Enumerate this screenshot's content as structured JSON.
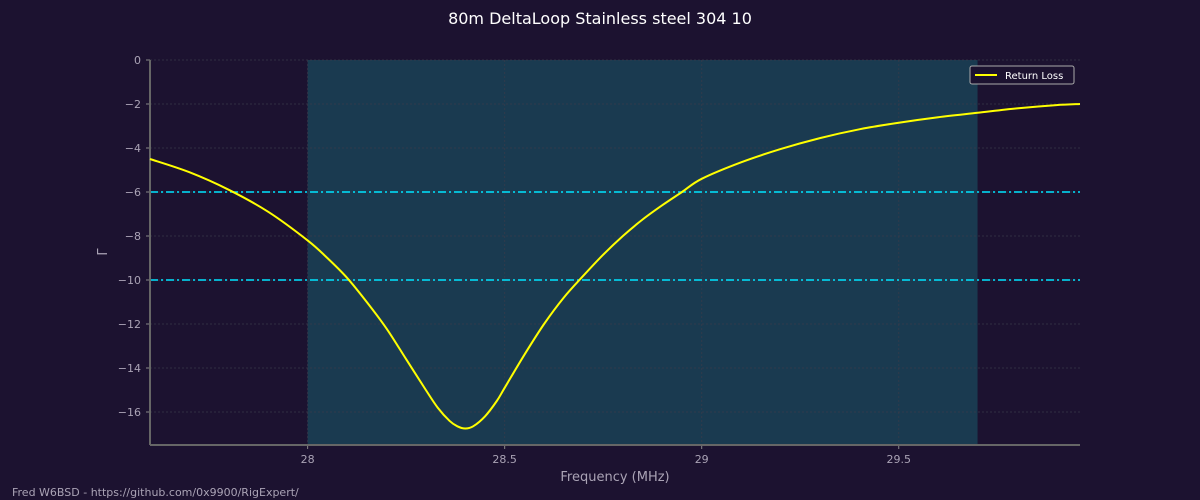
{
  "chart_data": {
    "type": "line",
    "title": "80m DeltaLoop Stainless steel 304 10",
    "xlabel": "Frequency (MHz)",
    "ylabel": "Γ",
    "xlim": [
      27.6,
      29.96
    ],
    "ylim": [
      -17.5,
      0
    ],
    "xticks": [
      28,
      28.5,
      29,
      29.5
    ],
    "xtick_labels": [
      "28",
      "28.5",
      "29",
      "29.5"
    ],
    "yticks": [
      0,
      -2,
      -4,
      -6,
      -8,
      -10,
      -12,
      -14,
      -16
    ],
    "ytick_labels": [
      "0",
      "−2",
      "−4",
      "−6",
      "−8",
      "−10",
      "−12",
      "−14",
      "−16"
    ],
    "grid": true,
    "legend": {
      "placement": "top-right",
      "entries": [
        "Return Loss"
      ]
    },
    "band": [
      28.0,
      29.7
    ],
    "hlines": [
      -6,
      -10
    ],
    "series": [
      {
        "name": "Return Loss",
        "color": "#ffff00",
        "x": [
          27.6,
          27.7,
          27.8,
          27.9,
          28.0,
          28.05,
          28.1,
          28.15,
          28.2,
          28.25,
          28.3,
          28.33,
          28.36,
          28.38,
          28.4,
          28.42,
          28.45,
          28.48,
          28.5,
          28.55,
          28.6,
          28.65,
          28.7,
          28.75,
          28.8,
          28.85,
          28.9,
          28.95,
          29.0,
          29.1,
          29.2,
          29.3,
          29.4,
          29.5,
          29.6,
          29.7,
          29.8,
          29.9,
          29.96
        ],
        "y": [
          -4.5,
          -5.1,
          -5.9,
          -6.9,
          -8.2,
          -9.0,
          -9.9,
          -11.0,
          -12.2,
          -13.6,
          -15.0,
          -15.8,
          -16.4,
          -16.65,
          -16.75,
          -16.65,
          -16.2,
          -15.5,
          -14.9,
          -13.4,
          -12.0,
          -10.8,
          -9.8,
          -8.85,
          -8.0,
          -7.25,
          -6.6,
          -6.0,
          -5.4,
          -4.65,
          -4.05,
          -3.55,
          -3.15,
          -2.85,
          -2.6,
          -2.4,
          -2.2,
          -2.05,
          -2.0
        ]
      }
    ],
    "colors": {
      "background": "#1c1230",
      "band": "#1a3a50",
      "hline": "#00e5ff",
      "grid": "#3a3a4a",
      "axis": "#666666"
    }
  },
  "footer": "Fred W6BSD - https://github.com/0x9900/RigExpert/"
}
